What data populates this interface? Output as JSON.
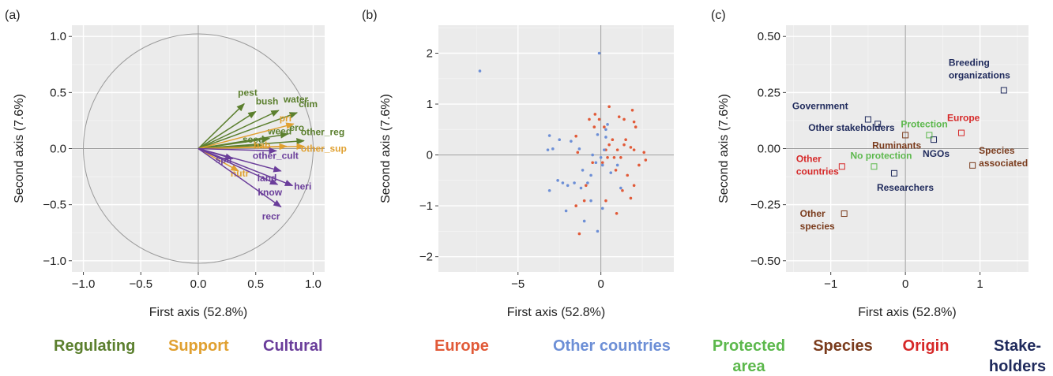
{
  "panels": {
    "a": "(a)",
    "b": "(b)",
    "c": "(c)"
  },
  "colors": {
    "regulating": "#5b7f2e",
    "support": "#e0a030",
    "cultural": "#6a3d9a",
    "europe": "#e15a38",
    "other_countries": "#6d8fd6",
    "protected_area": "#5cb84c",
    "species": "#7a3b1c",
    "origin": "#d62828",
    "stakeholders": "#1f2a5c"
  },
  "chart_data": [
    {
      "type": "biplot",
      "panel": "(a)",
      "xlabel": "First axis (52.8%)",
      "ylabel": "Second axis (7.6%)",
      "xlim": [
        -1.1,
        1.1
      ],
      "ylim": [
        -1.1,
        1.1
      ],
      "xticks": [
        "−1.0",
        "−0.5",
        "0.0",
        "0.5",
        "1.0"
      ],
      "xtick_values": [
        -1.0,
        -0.5,
        0.0,
        0.5,
        1.0
      ],
      "yticks": [
        "−1.0",
        "−0.5",
        "0.0",
        "0.5",
        "1.0"
      ],
      "ytick_values": [
        -1.0,
        -0.5,
        0.0,
        0.5,
        1.0
      ],
      "grid": true,
      "unit_circle": true,
      "vectors": [
        {
          "label": "pest",
          "x": 0.4,
          "y": 0.4,
          "group": "regulating"
        },
        {
          "label": "bush",
          "x": 0.5,
          "y": 0.33,
          "group": "regulating"
        },
        {
          "label": "water",
          "x": 0.7,
          "y": 0.34,
          "group": "regulating"
        },
        {
          "label": "clim",
          "x": 0.86,
          "y": 0.32,
          "group": "regulating"
        },
        {
          "label": "ero",
          "x": 0.78,
          "y": 0.13,
          "group": "regulating"
        },
        {
          "label": "weed",
          "x": 0.62,
          "y": 0.09,
          "group": "regulating"
        },
        {
          "label": "seed",
          "x": 0.55,
          "y": 0.03,
          "group": "regulating"
        },
        {
          "label": "other_reg",
          "x": 0.92,
          "y": 0.07,
          "group": "regulating"
        },
        {
          "label": "pri",
          "x": 0.83,
          "y": 0.22,
          "group": "support"
        },
        {
          "label": "hab",
          "x": 0.77,
          "y": 0.02,
          "group": "support"
        },
        {
          "label": "other_sup",
          "x": 0.92,
          "y": 0.02,
          "group": "support"
        },
        {
          "label": "nutr",
          "x": 0.35,
          "y": -0.2,
          "group": "support"
        },
        {
          "label": "spir",
          "x": 0.3,
          "y": -0.09,
          "group": "cultural"
        },
        {
          "label": "other_cult",
          "x": 0.68,
          "y": -0.02,
          "group": "cultural"
        },
        {
          "label": "land",
          "x": 0.72,
          "y": -0.2,
          "group": "cultural"
        },
        {
          "label": "heri",
          "x": 0.82,
          "y": -0.33,
          "group": "cultural"
        },
        {
          "label": "know",
          "x": 0.69,
          "y": -0.32,
          "group": "cultural"
        },
        {
          "label": "recr",
          "x": 0.72,
          "y": -0.52,
          "group": "cultural"
        }
      ]
    },
    {
      "type": "scatter",
      "panel": "(b)",
      "xlabel": "First axis (52.8%)",
      "ylabel": "Second axis (7.6%)",
      "xlim": [
        -9.8,
        4.4
      ],
      "ylim": [
        -2.3,
        2.55
      ],
      "xticks": [
        "−5",
        "0"
      ],
      "xtick_values": [
        -5,
        0
      ],
      "yticks": [
        "−2",
        "−1",
        "0",
        "1",
        "2"
      ],
      "ytick_values": [
        -2,
        -1,
        0,
        1,
        2
      ],
      "grid": true,
      "series": [
        {
          "name": "Europe",
          "group": "europe",
          "points": [
            [
              -0.7,
              0.7
            ],
            [
              -0.35,
              0.8
            ],
            [
              -0.1,
              0.7
            ],
            [
              0.2,
              0.55
            ],
            [
              -0.4,
              0.55
            ],
            [
              0.5,
              0.95
            ],
            [
              1.1,
              0.75
            ],
            [
              1.4,
              0.7
            ],
            [
              1.9,
              0.88
            ],
            [
              2.0,
              0.65
            ],
            [
              2.1,
              0.55
            ],
            [
              1.5,
              0.3
            ],
            [
              -1.5,
              0.37
            ],
            [
              1.4,
              0.2
            ],
            [
              1.8,
              0.15
            ],
            [
              2.0,
              0.1
            ],
            [
              0.7,
              0.3
            ],
            [
              0.5,
              0.2
            ],
            [
              0.3,
              0.1
            ],
            [
              1.0,
              0.1
            ],
            [
              0.8,
              -0.05
            ],
            [
              1.2,
              -0.05
            ],
            [
              2.3,
              -0.2
            ],
            [
              2.6,
              0.05
            ],
            [
              2.7,
              -0.1
            ],
            [
              0.1,
              -0.15
            ],
            [
              0.4,
              -0.05
            ],
            [
              -0.5,
              -0.15
            ],
            [
              0.9,
              -0.3
            ],
            [
              1.6,
              -0.4
            ],
            [
              -0.9,
              -0.6
            ],
            [
              1.3,
              -0.7
            ],
            [
              2.0,
              -0.6
            ],
            [
              -1.0,
              -0.9
            ],
            [
              0.3,
              -0.9
            ],
            [
              1.8,
              -0.85
            ],
            [
              -1.5,
              -1.0
            ],
            [
              0.95,
              -1.15
            ],
            [
              -1.3,
              -1.55
            ],
            [
              -1.4,
              0.05
            ]
          ]
        },
        {
          "name": "Other countries",
          "group": "other_countries",
          "points": [
            [
              -7.3,
              1.65
            ],
            [
              -0.1,
              2.0
            ],
            [
              0.4,
              0.6
            ],
            [
              -0.2,
              0.4
            ],
            [
              -3.1,
              0.38
            ],
            [
              -2.5,
              0.3
            ],
            [
              -1.8,
              0.27
            ],
            [
              -1.3,
              0.12
            ],
            [
              -2.9,
              0.12
            ],
            [
              -3.2,
              0.1
            ],
            [
              0.2,
              0.1
            ],
            [
              0.3,
              0.35
            ],
            [
              -0.5,
              0.0
            ],
            [
              0.0,
              -0.05
            ],
            [
              0.1,
              -0.2
            ],
            [
              -0.3,
              -0.15
            ],
            [
              -0.6,
              -0.4
            ],
            [
              -1.1,
              -0.3
            ],
            [
              -1.6,
              -0.55
            ],
            [
              -2.3,
              -0.55
            ],
            [
              -2.0,
              -0.6
            ],
            [
              -3.1,
              -0.7
            ],
            [
              -1.2,
              -0.65
            ],
            [
              -0.8,
              -0.55
            ],
            [
              1.2,
              -0.65
            ],
            [
              -2.6,
              -0.5
            ],
            [
              -2.1,
              -1.1
            ],
            [
              -1.0,
              -1.3
            ],
            [
              0.1,
              -1.05
            ],
            [
              -0.2,
              -1.5
            ],
            [
              1.0,
              -0.2
            ],
            [
              0.6,
              -0.35
            ],
            [
              0.3,
              0.5
            ],
            [
              -0.6,
              -0.9
            ]
          ]
        }
      ]
    },
    {
      "type": "scatter",
      "panel": "(c)",
      "xlabel": "First axis (52.8%)",
      "ylabel": "Second axis (7.6%)",
      "xlim": [
        -1.6,
        1.65
      ],
      "ylim": [
        -0.55,
        0.55
      ],
      "xticks": [
        "−1",
        "0",
        "1"
      ],
      "xtick_values": [
        -1,
        0,
        1
      ],
      "yticks": [
        "−0.50",
        "−0.25",
        "0.00",
        "0.25",
        "0.50"
      ],
      "ytick_values": [
        -0.5,
        -0.25,
        0.0,
        0.25,
        0.5
      ],
      "grid": true,
      "points": [
        {
          "label": [
            "Breeding",
            "organizations"
          ],
          "x": 1.32,
          "y": 0.26,
          "group": "stakeholders"
        },
        {
          "label": [
            "Government"
          ],
          "x": -0.5,
          "y": 0.13,
          "group": "stakeholders"
        },
        {
          "label": [
            "Other stakeholders"
          ],
          "x": -0.37,
          "y": 0.11,
          "group": "stakeholders"
        },
        {
          "label": [
            "NGOs"
          ],
          "x": 0.38,
          "y": 0.04,
          "group": "stakeholders"
        },
        {
          "label": [
            "Researchers"
          ],
          "x": -0.15,
          "y": -0.11,
          "group": "stakeholders"
        },
        {
          "label": [
            "Protection"
          ],
          "x": 0.32,
          "y": 0.06,
          "group": "protected_area"
        },
        {
          "label": [
            "No protection"
          ],
          "x": -0.42,
          "y": -0.08,
          "group": "protected_area"
        },
        {
          "label": [
            "Europe"
          ],
          "x": 0.75,
          "y": 0.07,
          "group": "origin"
        },
        {
          "label": [
            "Other",
            "countries"
          ],
          "x": -0.85,
          "y": -0.08,
          "group": "origin"
        },
        {
          "label": [
            "Ruminants"
          ],
          "x": 0.0,
          "y": 0.06,
          "group": "species"
        },
        {
          "label": [
            "Species",
            "associated"
          ],
          "x": 0.9,
          "y": -0.075,
          "group": "species"
        },
        {
          "label": [
            "Other",
            "species"
          ],
          "x": -0.82,
          "y": -0.29,
          "group": "species"
        }
      ]
    }
  ],
  "legends": {
    "a": [
      {
        "label": "Regulating",
        "group": "regulating"
      },
      {
        "label": "Support",
        "group": "support"
      },
      {
        "label": "Cultural",
        "group": "cultural"
      }
    ],
    "b": [
      {
        "label": "Europe",
        "group": "europe"
      },
      {
        "label": "Other countries",
        "group": "other_countries"
      }
    ],
    "c": [
      {
        "label": [
          "Protected",
          "area"
        ],
        "group": "protected_area"
      },
      {
        "label": [
          "Species"
        ],
        "group": "species"
      },
      {
        "label": [
          "Origin"
        ],
        "group": "origin"
      },
      {
        "label": [
          "Stake-",
          "holders"
        ],
        "group": "stakeholders"
      }
    ]
  }
}
